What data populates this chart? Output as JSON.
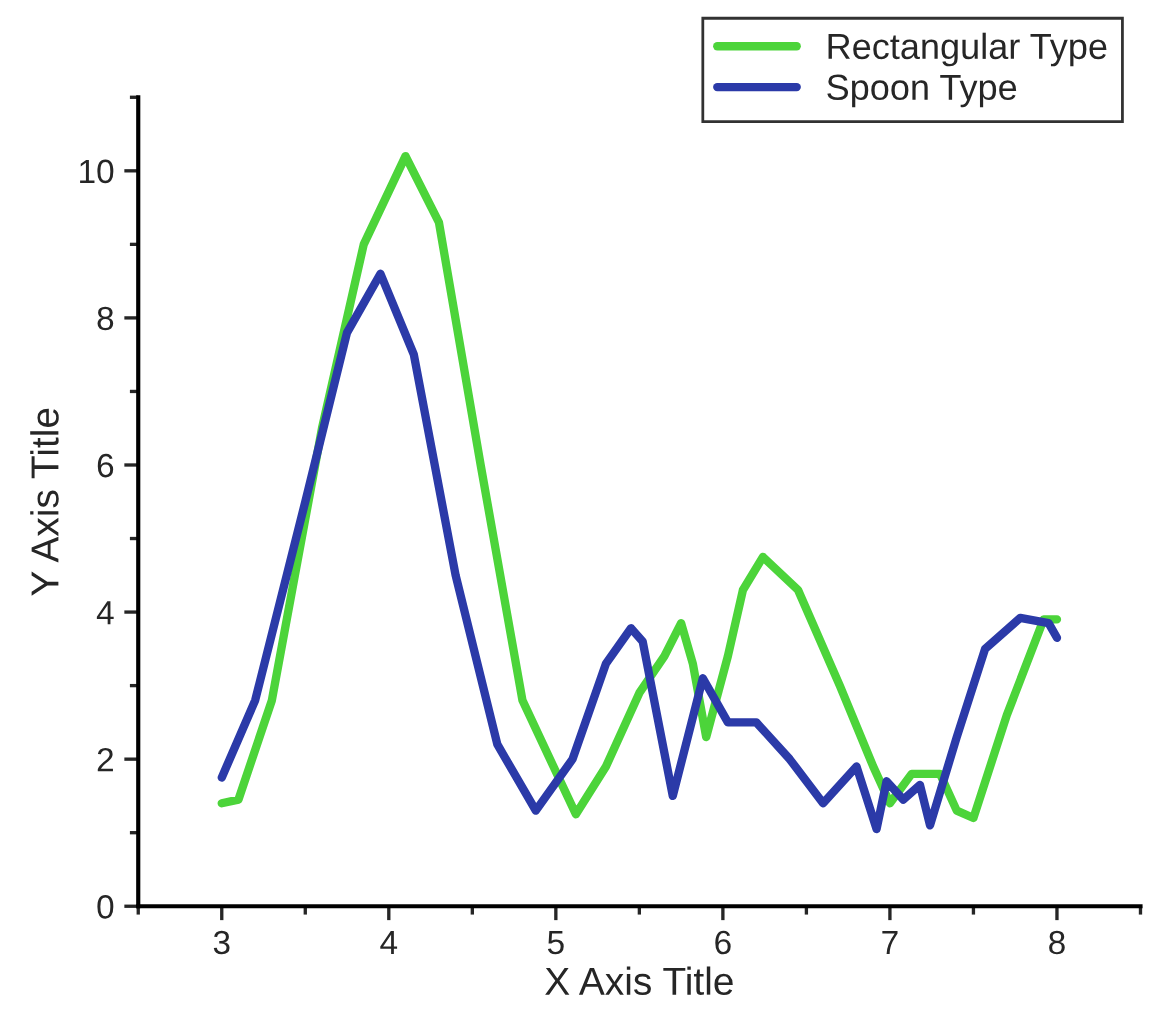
{
  "chart_data": {
    "type": "line",
    "xlabel": "X Axis Title",
    "ylabel": "Y Axis Title",
    "xlim": [
      2.5,
      8.5
    ],
    "ylim": [
      0,
      11
    ],
    "xticks": [
      3,
      4,
      5,
      6,
      7,
      8
    ],
    "yticks": [
      0,
      2,
      4,
      6,
      8,
      10
    ],
    "grid": false,
    "legend": "top right",
    "line_style": "solid",
    "marker": "none",
    "series": [
      {
        "name": "Rectangular Type",
        "color": "#4cd43a",
        "x": [
          3.0,
          3.1,
          3.3,
          3.6,
          3.85,
          4.1,
          4.3,
          4.55,
          4.8,
          5.12,
          5.3,
          5.5,
          5.65,
          5.75,
          5.82,
          5.9,
          6.03,
          6.12,
          6.24,
          6.45,
          6.7,
          6.9,
          7.0,
          7.13,
          7.3,
          7.4,
          7.5,
          7.7,
          7.92,
          8.0
        ],
        "values": [
          1.4,
          1.45,
          2.8,
          6.5,
          9.0,
          10.2,
          9.3,
          6.0,
          2.8,
          1.25,
          1.9,
          2.9,
          3.4,
          3.85,
          3.3,
          2.3,
          3.4,
          4.3,
          4.75,
          4.3,
          3.0,
          1.9,
          1.4,
          1.8,
          1.8,
          1.3,
          1.2,
          2.6,
          3.9,
          3.9
        ]
      },
      {
        "name": "Spoon Type",
        "color": "#2b3aa8",
        "x": [
          3.0,
          3.2,
          3.5,
          3.75,
          3.95,
          4.15,
          4.4,
          4.65,
          4.88,
          5.1,
          5.3,
          5.45,
          5.52,
          5.7,
          5.88,
          6.03,
          6.2,
          6.4,
          6.6,
          6.8,
          6.92,
          6.98,
          7.08,
          7.18,
          7.24,
          7.4,
          7.57,
          7.78,
          7.95,
          8.0
        ],
        "values": [
          1.75,
          2.8,
          5.5,
          7.8,
          8.6,
          7.5,
          4.5,
          2.2,
          1.3,
          2.0,
          3.3,
          3.78,
          3.6,
          1.5,
          3.1,
          2.5,
          2.5,
          2.0,
          1.4,
          1.9,
          1.05,
          1.7,
          1.45,
          1.65,
          1.1,
          2.3,
          3.5,
          3.92,
          3.85,
          3.65
        ]
      }
    ]
  }
}
